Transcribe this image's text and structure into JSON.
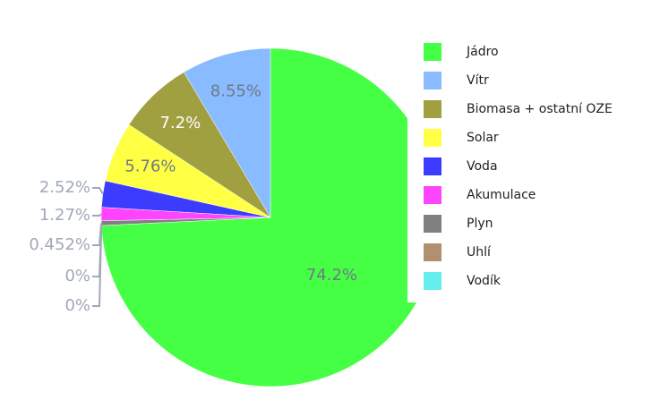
{
  "chart_data": {
    "type": "pie",
    "categories": [
      "Jádro",
      "Vítr",
      "Biomasa + ostatní OZE",
      "Solar",
      "Voda",
      "Akumulace",
      "Plyn",
      "Uhlí",
      "Vodík"
    ],
    "values": [
      74.2,
      8.55,
      7.2,
      5.76,
      2.52,
      1.27,
      0.452,
      0,
      0
    ],
    "value_labels": [
      "74.2%",
      "8.55%",
      "7.2%",
      "5.76%",
      "2.52%",
      "1.27%",
      "0.452%",
      "0%",
      "0%"
    ],
    "colors": [
      "#44ff44",
      "#88bbff",
      "#a0a040",
      "#ffff44",
      "#3c3cff",
      "#ff44ff",
      "#808080",
      "#b09070",
      "#66eeee"
    ],
    "legend": "right"
  }
}
